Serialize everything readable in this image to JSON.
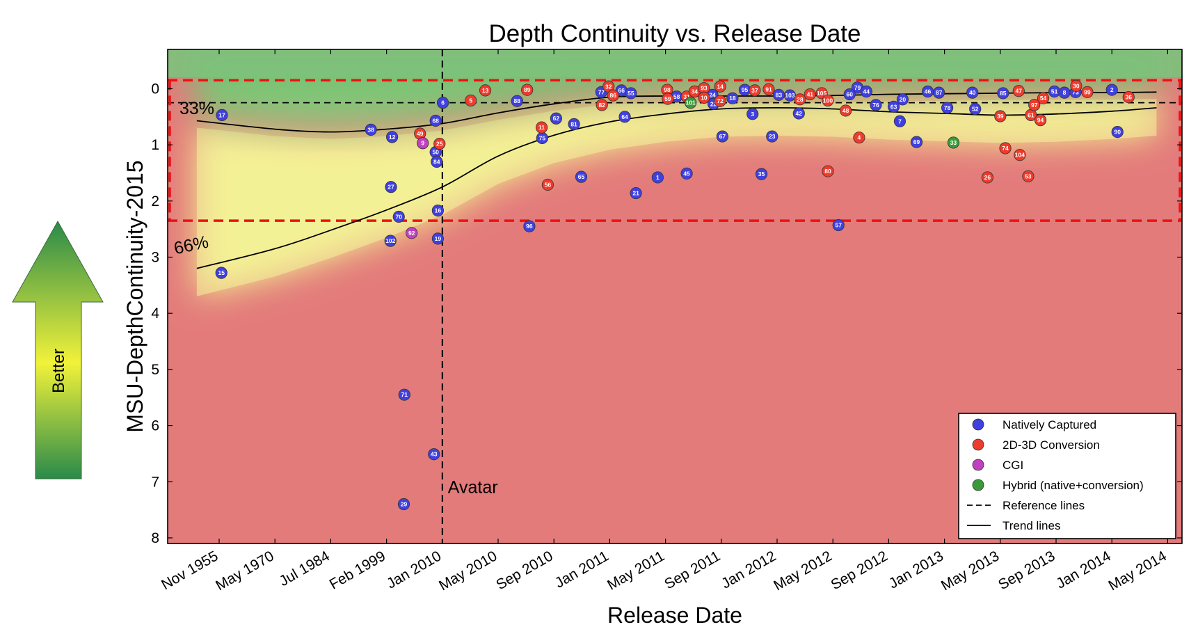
{
  "chart_data": {
    "type": "scatter",
    "title": "Depth Continuity vs. Release Date",
    "xlabel": "Release Date",
    "ylabel": "MSU-DepthContinuity-2015",
    "x_tick_labels": [
      "Nov 1955",
      "May 1970",
      "Jul 1984",
      "Feb 1999",
      "Jan 2010",
      "May 2010",
      "Sep 2010",
      "Jan 2011",
      "May 2011",
      "Sep 2011",
      "Jan 2012",
      "May 2012",
      "Sep 2012",
      "Jan 2013",
      "May 2013",
      "Sep 2013",
      "Jan 2014",
      "May 2014"
    ],
    "y_ticks": [
      0,
      1,
      2,
      3,
      4,
      5,
      6,
      7,
      8
    ],
    "ylim": [
      8.1,
      -0.7
    ],
    "y_inverted": true,
    "x_scale": "nonuniform (ordinal tick spacing)",
    "legend": {
      "placement": "bottom-right",
      "entries": [
        {
          "label": "Natively Captured",
          "color": "#4040e0"
        },
        {
          "label": "2D-3D Conversion",
          "color": "#ef3b2c"
        },
        {
          "label": "CGI",
          "color": "#c040c0"
        },
        {
          "label": "Hybrid (native+conversion)",
          "color": "#3a9a3a"
        },
        {
          "label": "Reference lines",
          "style": "dashed"
        },
        {
          "label": "Trend lines",
          "style": "solid"
        }
      ]
    },
    "annotations": {
      "vertical_line": {
        "label": "Avatar",
        "x_tick": "Jan 2010"
      },
      "percentile_labels": [
        "33%",
        "66%"
      ],
      "reference_lines_y": [
        0.25,
        2.35
      ],
      "reference_box": {
        "y_top": -0.15,
        "y_bottom": 2.35
      }
    },
    "series": [
      {
        "name": "Natively Captured",
        "points": [
          {
            "id": "17",
            "x": 0.05,
            "y": 0.47
          },
          {
            "id": "15",
            "x": 0.04,
            "y": 3.28
          },
          {
            "id": "38",
            "x": 2.72,
            "y": 0.73
          },
          {
            "id": "12",
            "x": 3.1,
            "y": 0.86
          },
          {
            "id": "27",
            "x": 3.08,
            "y": 1.75
          },
          {
            "id": "70",
            "x": 3.22,
            "y": 2.28
          },
          {
            "id": "102",
            "x": 3.07,
            "y": 2.71
          },
          {
            "id": "71",
            "x": 3.32,
            "y": 5.45
          },
          {
            "id": "29",
            "x": 3.31,
            "y": 7.4
          },
          {
            "id": "43",
            "x": 3.85,
            "y": 6.51
          },
          {
            "id": "68",
            "x": 3.88,
            "y": 0.57
          },
          {
            "id": "50",
            "x": 3.88,
            "y": 1.13
          },
          {
            "id": "84",
            "x": 3.9,
            "y": 1.3
          },
          {
            "id": "16",
            "x": 3.92,
            "y": 2.17
          },
          {
            "id": "19",
            "x": 3.92,
            "y": 2.67
          },
          {
            "id": "6",
            "x": 4.01,
            "y": 0.25
          },
          {
            "id": "88",
            "x": 5.34,
            "y": 0.22
          },
          {
            "id": "75",
            "x": 5.79,
            "y": 0.88
          },
          {
            "id": "62",
            "x": 6.04,
            "y": 0.53
          },
          {
            "id": "81",
            "x": 6.36,
            "y": 0.63
          },
          {
            "id": "65",
            "x": 6.49,
            "y": 1.57
          },
          {
            "id": "96",
            "x": 5.56,
            "y": 2.45
          },
          {
            "id": "77",
            "x": 6.85,
            "y": 0.06
          },
          {
            "id": "66",
            "x": 7.21,
            "y": 0.03
          },
          {
            "id": "55",
            "x": 7.38,
            "y": 0.08
          },
          {
            "id": "64",
            "x": 7.27,
            "y": 0.5
          },
          {
            "id": "21",
            "x": 7.47,
            "y": 1.86
          },
          {
            "id": "1",
            "x": 7.86,
            "y": 1.58
          },
          {
            "id": "58",
            "x": 8.2,
            "y": 0.14
          },
          {
            "id": "45",
            "x": 8.38,
            "y": 1.51
          },
          {
            "id": "24",
            "x": 8.84,
            "y": 0.11
          },
          {
            "id": "22",
            "x": 8.86,
            "y": 0.27
          },
          {
            "id": "18",
            "x": 9.2,
            "y": 0.17
          },
          {
            "id": "67",
            "x": 9.02,
            "y": 0.85
          },
          {
            "id": "95",
            "x": 9.42,
            "y": 0.02
          },
          {
            "id": "3",
            "x": 9.56,
            "y": 0.45
          },
          {
            "id": "35",
            "x": 9.72,
            "y": 1.52
          },
          {
            "id": "23",
            "x": 9.91,
            "y": 0.85
          },
          {
            "id": "83",
            "x": 10.03,
            "y": 0.11
          },
          {
            "id": "103",
            "x": 10.23,
            "y": 0.12
          },
          {
            "id": "42",
            "x": 10.39,
            "y": 0.44
          },
          {
            "id": "57",
            "x": 11.1,
            "y": 2.43
          },
          {
            "id": "79",
            "x": 11.44,
            "y": -0.02
          },
          {
            "id": "60",
            "x": 11.3,
            "y": 0.1
          },
          {
            "id": "44",
            "x": 11.6,
            "y": 0.05
          },
          {
            "id": "76",
            "x": 11.77,
            "y": 0.29
          },
          {
            "id": "63",
            "x": 12.09,
            "y": 0.32
          },
          {
            "id": "20",
            "x": 12.25,
            "y": 0.19
          },
          {
            "id": "7",
            "x": 12.2,
            "y": 0.58
          },
          {
            "id": "69",
            "x": 12.5,
            "y": 0.95
          },
          {
            "id": "46",
            "x": 12.7,
            "y": 0.05
          },
          {
            "id": "87",
            "x": 12.9,
            "y": 0.07
          },
          {
            "id": "78",
            "x": 13.05,
            "y": 0.34
          },
          {
            "id": "40",
            "x": 13.5,
            "y": 0.07
          },
          {
            "id": "52",
            "x": 13.55,
            "y": 0.36
          },
          {
            "id": "85",
            "x": 14.05,
            "y": 0.08
          },
          {
            "id": "51",
            "x": 14.97,
            "y": 0.05
          },
          {
            "id": "8",
            "x": 15.15,
            "y": 0.07
          },
          {
            "id": "73",
            "x": 15.35,
            "y": 0.06
          },
          {
            "id": "2",
            "x": 16.0,
            "y": 0.02
          },
          {
            "id": "90",
            "x": 16.1,
            "y": 0.77
          }
        ]
      },
      {
        "name": "2D-3D Conversion",
        "points": [
          {
            "id": "49",
            "x": 3.6,
            "y": 0.8
          },
          {
            "id": "25",
            "x": 3.95,
            "y": 0.98
          },
          {
            "id": "5",
            "x": 4.51,
            "y": 0.21
          },
          {
            "id": "13",
            "x": 4.77,
            "y": 0.03
          },
          {
            "id": "89",
            "x": 5.52,
            "y": 0.02
          },
          {
            "id": "11",
            "x": 5.78,
            "y": 0.69
          },
          {
            "id": "56",
            "x": 5.89,
            "y": 1.71
          },
          {
            "id": "32",
            "x": 6.98,
            "y": -0.04
          },
          {
            "id": "86",
            "x": 7.06,
            "y": 0.12
          },
          {
            "id": "82",
            "x": 6.86,
            "y": 0.29
          },
          {
            "id": "98",
            "x": 8.03,
            "y": 0.02
          },
          {
            "id": "59",
            "x": 8.04,
            "y": 0.18
          },
          {
            "id": "31",
            "x": 8.38,
            "y": 0.14
          },
          {
            "id": "34",
            "x": 8.52,
            "y": 0.05
          },
          {
            "id": "93",
            "x": 8.69,
            "y": -0.01
          },
          {
            "id": "14",
            "x": 8.98,
            "y": -0.04
          },
          {
            "id": "10",
            "x": 8.69,
            "y": 0.16
          },
          {
            "id": "72",
            "x": 8.98,
            "y": 0.22
          },
          {
            "id": "37",
            "x": 9.6,
            "y": 0.03
          },
          {
            "id": "91",
            "x": 9.85,
            "y": 0.01
          },
          {
            "id": "28",
            "x": 10.41,
            "y": 0.19
          },
          {
            "id": "41",
            "x": 10.59,
            "y": 0.1
          },
          {
            "id": "105",
            "x": 10.8,
            "y": 0.08
          },
          {
            "id": "100",
            "x": 10.91,
            "y": 0.21
          },
          {
            "id": "80",
            "x": 10.91,
            "y": 1.47
          },
          {
            "id": "48",
            "x": 11.23,
            "y": 0.39
          },
          {
            "id": "4",
            "x": 11.47,
            "y": 0.87
          },
          {
            "id": "39",
            "x": 14.0,
            "y": 0.49
          },
          {
            "id": "74",
            "x": 14.09,
            "y": 1.06
          },
          {
            "id": "26",
            "x": 13.77,
            "y": 1.58
          },
          {
            "id": "47",
            "x": 14.33,
            "y": 0.04
          },
          {
            "id": "104",
            "x": 14.35,
            "y": 1.18
          },
          {
            "id": "61",
            "x": 14.55,
            "y": 0.47
          },
          {
            "id": "97",
            "x": 14.61,
            "y": 0.29
          },
          {
            "id": "94",
            "x": 14.72,
            "y": 0.56
          },
          {
            "id": "54",
            "x": 14.77,
            "y": 0.17
          },
          {
            "id": "53",
            "x": 14.5,
            "y": 1.56
          },
          {
            "id": "30",
            "x": 15.36,
            "y": -0.05
          },
          {
            "id": "99",
            "x": 15.56,
            "y": 0.06
          },
          {
            "id": "36",
            "x": 16.3,
            "y": 0.15
          }
        ]
      },
      {
        "name": "CGI",
        "points": [
          {
            "id": "9",
            "x": 3.65,
            "y": 0.97
          },
          {
            "id": "92",
            "x": 3.45,
            "y": 2.57
          }
        ]
      },
      {
        "name": "Hybrid (native+conversion)",
        "points": [
          {
            "id": "101",
            "x": 8.45,
            "y": 0.25
          },
          {
            "id": "33",
            "x": 13.16,
            "y": 0.96
          }
        ]
      }
    ],
    "trend_lines": [
      {
        "name": "33%",
        "points": [
          [
            -0.4,
            0.57
          ],
          [
            1,
            0.72
          ],
          [
            2,
            0.77
          ],
          [
            3,
            0.72
          ],
          [
            4,
            0.62
          ],
          [
            5,
            0.43
          ],
          [
            6,
            0.27
          ],
          [
            7,
            0.15
          ],
          [
            8,
            0.13
          ],
          [
            9,
            0.13
          ],
          [
            10,
            0.13
          ],
          [
            11,
            0.12
          ],
          [
            12,
            0.1
          ],
          [
            13,
            0.09
          ],
          [
            14,
            0.08
          ],
          [
            15,
            0.07
          ],
          [
            16,
            0.07
          ],
          [
            16.8,
            0.06
          ]
        ]
      },
      {
        "name": "66%",
        "points": [
          [
            -0.4,
            3.2
          ],
          [
            1,
            2.85
          ],
          [
            2,
            2.52
          ],
          [
            3,
            2.16
          ],
          [
            4,
            1.75
          ],
          [
            5,
            1.2
          ],
          [
            6,
            0.83
          ],
          [
            7,
            0.59
          ],
          [
            8,
            0.45
          ],
          [
            9,
            0.36
          ],
          [
            10,
            0.34
          ],
          [
            11,
            0.36
          ],
          [
            12,
            0.41
          ],
          [
            13,
            0.44
          ],
          [
            14,
            0.47
          ],
          [
            15,
            0.45
          ],
          [
            16,
            0.4
          ],
          [
            16.8,
            0.34
          ]
        ]
      }
    ]
  }
}
